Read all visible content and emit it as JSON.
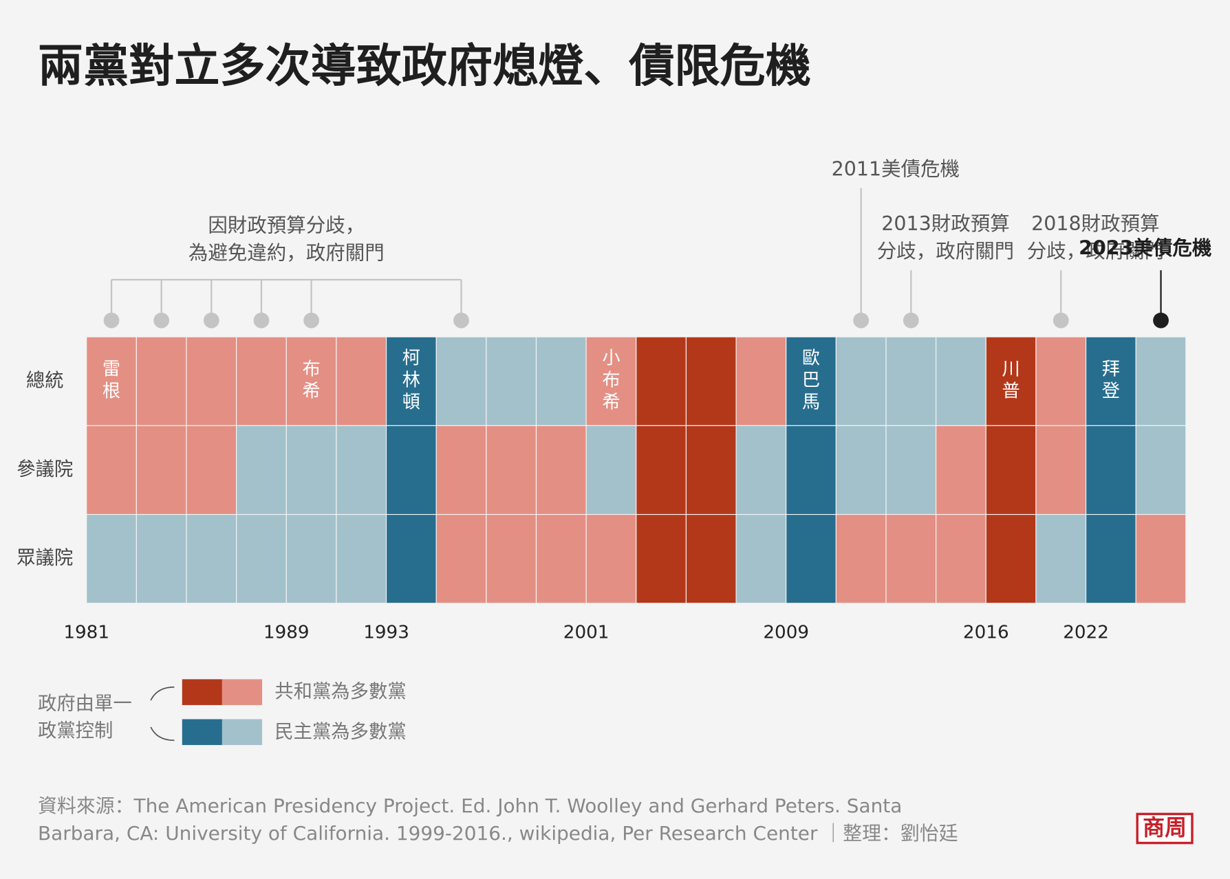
{
  "title": "兩黨對立多次導致政府熄燈、債限危機",
  "chart_data": {
    "type": "timeline-grid",
    "categories": [
      "1981",
      null,
      null,
      null,
      "1989",
      null,
      "1993",
      null,
      null,
      null,
      "2001",
      null,
      null,
      null,
      "2009",
      null,
      null,
      null,
      "2016",
      null,
      "2022",
      null
    ],
    "president_names": [
      "雷根",
      null,
      null,
      null,
      "布希",
      null,
      "柯林頓",
      null,
      null,
      null,
      "小布希",
      null,
      null,
      null,
      "歐巴馬",
      null,
      null,
      null,
      "川普",
      null,
      "拜登",
      null
    ],
    "colors": {
      "R-unified": "#b3381a",
      "R": "#e48f84",
      "D-unified": "#276d8e",
      "D": "#a3c1cb"
    },
    "series": [
      {
        "name": "總統",
        "values": [
          "R",
          "R",
          "R",
          "R",
          "R",
          "R",
          "D-unified",
          "D",
          "D",
          "D",
          "R",
          "R-unified",
          "R-unified",
          "R",
          "D-unified",
          "D",
          "D",
          "D",
          "R-unified",
          "R",
          "D-unified",
          "D"
        ]
      },
      {
        "name": "參議院",
        "values": [
          "R",
          "R",
          "R",
          "D",
          "D",
          "D",
          "D-unified",
          "R",
          "R",
          "R",
          "D",
          "R-unified",
          "R-unified",
          "D",
          "D-unified",
          "D",
          "D",
          "R",
          "R-unified",
          "R",
          "D-unified",
          "D"
        ]
      },
      {
        "name": "眾議院",
        "values": [
          "D",
          "D",
          "D",
          "D",
          "D",
          "D",
          "D-unified",
          "R",
          "R",
          "R",
          "R",
          "R-unified",
          "R-unified",
          "D",
          "D-unified",
          "R",
          "R",
          "R",
          "R-unified",
          "D",
          "D-unified",
          "R"
        ]
      }
    ],
    "annotations": [
      {
        "text": [
          "因財政預算分歧，",
          "為避免違約，政府關門"
        ],
        "columns": [
          0,
          1,
          2,
          3,
          4,
          7
        ],
        "highlight": false
      },
      {
        "text": [
          "2011美債危機"
        ],
        "columns": [
          15
        ],
        "highlight": false
      },
      {
        "text": [
          "2013財政預算",
          "分歧，政府關門"
        ],
        "columns": [
          16
        ],
        "highlight": false
      },
      {
        "text": [
          "2018財政預算",
          "分歧，政府關門"
        ],
        "columns": [
          19
        ],
        "highlight": false
      },
      {
        "text": [
          "2023美債危機"
        ],
        "columns": [
          21
        ],
        "highlight": true
      }
    ],
    "legend": {
      "title": [
        "政府由單一",
        "政黨控制"
      ],
      "items": [
        {
          "label": "共和黨為多數黨",
          "colors": [
            "R-unified",
            "R"
          ]
        },
        {
          "label": "民主黨為多數黨",
          "colors": [
            "D-unified",
            "D"
          ]
        }
      ]
    }
  },
  "source": [
    "資料來源：The American Presidency Project. Ed. John T. Woolley and Gerhard Peters. Santa",
    "Barbara, CA: University of California. 1999-2016., wikipedia, Per Research Center ｜整理：劉怡廷"
  ],
  "logo": "商周"
}
